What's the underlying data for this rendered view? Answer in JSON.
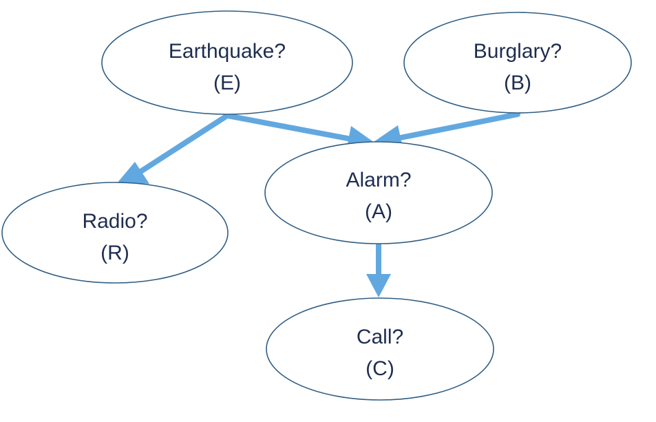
{
  "nodes": {
    "earthquake": {
      "label": "Earthquake?",
      "abbr": "(E)"
    },
    "burglary": {
      "label": "Burglary?",
      "abbr": "(B)"
    },
    "alarm": {
      "label": "Alarm?",
      "abbr": "(A)"
    },
    "radio": {
      "label": "Radio?",
      "abbr": "(R)"
    },
    "call": {
      "label": "Call?",
      "abbr": "(C)"
    }
  },
  "edges": [
    {
      "from": "earthquake",
      "to": "radio"
    },
    {
      "from": "earthquake",
      "to": "alarm"
    },
    {
      "from": "burglary",
      "to": "alarm"
    },
    {
      "from": "alarm",
      "to": "call"
    }
  ],
  "colors": {
    "edge": "#62a8e0",
    "node_border": "#2f5d82",
    "text": "#1e2d4f"
  }
}
